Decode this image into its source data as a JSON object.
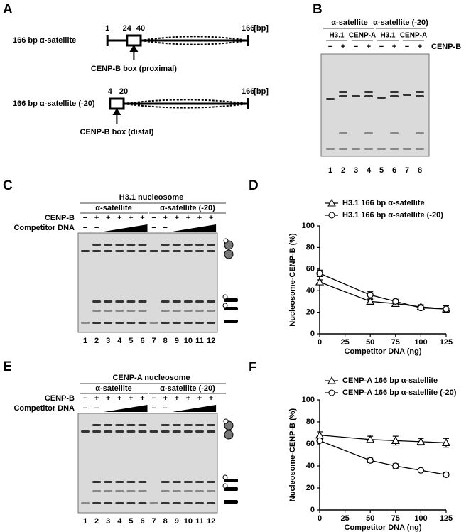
{
  "panel_labels": [
    "A",
    "B",
    "C",
    "D",
    "E",
    "F"
  ],
  "panel_a": {
    "constructs": [
      {
        "name": "166 bp α-satellite",
        "positions": [
          1,
          24,
          40,
          166
        ],
        "unit": "[bp]",
        "box_label": "CENP-B box (proximal)"
      },
      {
        "name": "166 bp α-satellite (-20)",
        "positions": [
          4,
          20,
          166
        ],
        "unit": "[bp]",
        "box_label": "CENP-B box (distal)"
      }
    ]
  },
  "panel_b": {
    "groups": [
      "α-satellite",
      "α-satellite (-20)"
    ],
    "nucleosomes": [
      "H3.1",
      "CENP-A",
      "H3.1",
      "CENP-A"
    ],
    "factor": "CENP-B",
    "factor_signs": [
      "−",
      "+",
      "−",
      "+",
      "−",
      "+",
      "−",
      "+"
    ],
    "lanes": [
      1,
      2,
      3,
      4,
      5,
      6,
      7,
      8
    ]
  },
  "panel_c": {
    "title": "H3.1 nucleosome",
    "groups": [
      "α-satellite",
      "α-satellite (-20)"
    ],
    "factor": "CENP-B",
    "factor_signs": [
      "−",
      "+",
      "+",
      "+",
      "+",
      "+",
      "−",
      "+",
      "+",
      "+",
      "+",
      "+"
    ],
    "competitor": "Competitor DNA",
    "competitor_signs": [
      "−",
      "−",
      "−",
      "−"
    ],
    "lanes": [
      1,
      2,
      3,
      4,
      5,
      6,
      7,
      8,
      9,
      10,
      11,
      12
    ]
  },
  "panel_e": {
    "title": "CENP-A nucleosome",
    "groups": [
      "α-satellite",
      "α-satellite (-20)"
    ],
    "factor": "CENP-B",
    "factor_signs": [
      "−",
      "+",
      "+",
      "+",
      "+",
      "+",
      "−",
      "+",
      "+",
      "+",
      "+",
      "+"
    ],
    "competitor": "Competitor DNA",
    "competitor_signs": [
      "−",
      "−",
      "−",
      "−"
    ],
    "lanes": [
      1,
      2,
      3,
      4,
      5,
      6,
      7,
      8,
      9,
      10,
      11,
      12
    ]
  },
  "chart_data": [
    {
      "type": "line",
      "x_label": "Competitor DNA (ng)",
      "y_label": "Nucleosome-CENP-B (%)",
      "x": [
        0,
        50,
        75,
        100,
        125
      ],
      "xlim": [
        0,
        125
      ],
      "xticks": [
        0,
        25,
        50,
        75,
        100,
        125
      ],
      "ylim": [
        0,
        100
      ],
      "yticks": [
        0,
        20,
        40,
        60,
        80,
        100
      ],
      "series": [
        {
          "name": "H3.1 166 bp α-satellite",
          "marker": "triangle",
          "color": "#000000",
          "values": [
            48,
            30,
            28,
            25,
            23
          ],
          "errors": [
            2,
            2,
            2,
            2,
            3
          ]
        },
        {
          "name": "H3.1 166 bp α-satellite (-20)",
          "marker": "circle",
          "color": "#000000",
          "values": [
            56,
            36,
            30,
            24,
            23
          ],
          "errors": [
            3,
            3,
            2,
            2,
            3
          ]
        }
      ]
    },
    {
      "type": "line",
      "x_label": "Competitor DNA (ng)",
      "y_label": "Nucleosome-CENP-B (%)",
      "x": [
        0,
        50,
        75,
        100,
        125
      ],
      "xlim": [
        0,
        125
      ],
      "xticks": [
        0,
        25,
        50,
        75,
        100,
        125
      ],
      "ylim": [
        0,
        100
      ],
      "yticks": [
        0,
        20,
        40,
        60,
        80,
        100
      ],
      "series": [
        {
          "name": "CENP-A 166 bp α-satellite",
          "marker": "triangle",
          "color": "#000000",
          "values": [
            68,
            64,
            63,
            62,
            61
          ],
          "errors": [
            3,
            3,
            4,
            3,
            4
          ]
        },
        {
          "name": "CENP-A 166 bp α-satellite (-20)",
          "marker": "circle",
          "color": "#000000",
          "values": [
            63,
            45,
            40,
            36,
            32
          ],
          "errors": [
            2,
            2,
            2,
            1,
            2
          ]
        }
      ]
    }
  ]
}
